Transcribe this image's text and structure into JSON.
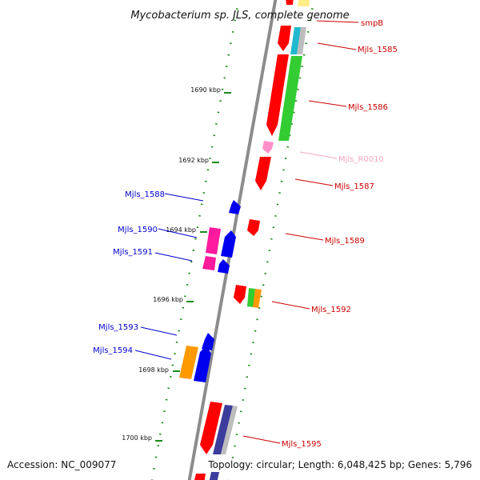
{
  "title": "Mycobacterium sp. JLS, complete genome",
  "footer": {
    "accession": "Accession: NC_009077",
    "summary": "Topology: circular; Length: 6,048,425 bp; Genes: 5,796"
  },
  "colors": {
    "backbone": "#8c8c8c",
    "tick": "#1a8a1a",
    "forward_label": "#cc0000",
    "reverse_label": "#0000cc",
    "rna_label": "#f4a6c6",
    "red": "#ff0000",
    "green": "#33cc33",
    "blue": "#0000ee",
    "magenta": "#ff1a9e",
    "pink": "#ff8fc8",
    "orange": "#ff9900",
    "gray": "#bdbdbd",
    "cyan": "#22b8d0",
    "navy": "#3c3c9c",
    "yellow": "#ffee88"
  },
  "scale_labels": [
    "1690 kbp",
    "1692 kbp",
    "1694 kbp",
    "1696 kbp",
    "1698 kbp",
    "1700 kbp"
  ],
  "gene_labels": [
    {
      "text": "smpB",
      "strand": "forward"
    },
    {
      "text": "Mjls_1585",
      "strand": "forward"
    },
    {
      "text": "Mjls_1586",
      "strand": "forward"
    },
    {
      "text": "Mjls_R0010",
      "strand": "rna"
    },
    {
      "text": "Mjls_1587",
      "strand": "forward"
    },
    {
      "text": "Mjls_1588",
      "strand": "reverse"
    },
    {
      "text": "Mjls_1589",
      "strand": "forward"
    },
    {
      "text": "Mjls_1590",
      "strand": "reverse"
    },
    {
      "text": "Mjls_1591",
      "strand": "reverse"
    },
    {
      "text": "Mjls_1592",
      "strand": "forward"
    },
    {
      "text": "Mjls_1593",
      "strand": "reverse"
    },
    {
      "text": "Mjls_1594",
      "strand": "reverse"
    },
    {
      "text": "Mjls_1595",
      "strand": "forward"
    }
  ]
}
